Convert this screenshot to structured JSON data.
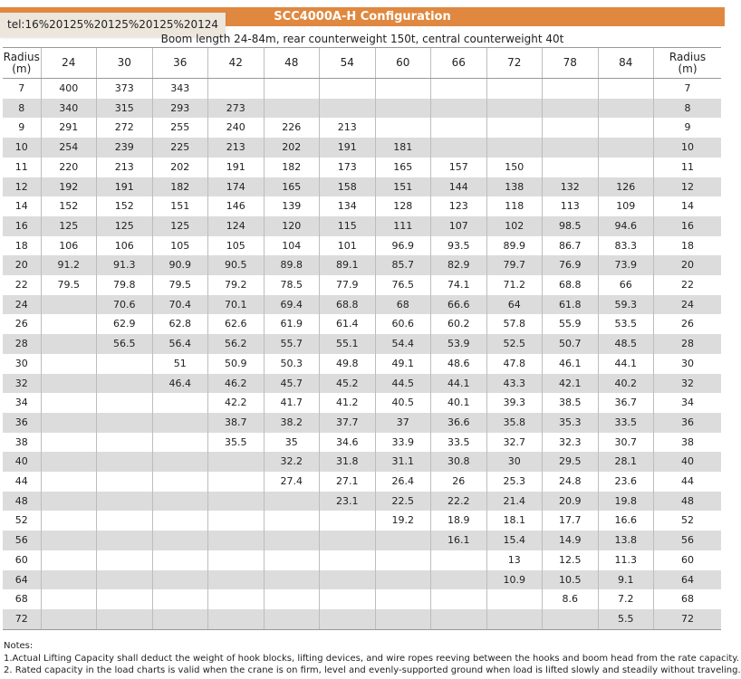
{
  "title": "SCC4000A-H Configuration",
  "overlay_text": "tel:16%20125%20125%20125%20124",
  "subtitle": "Boom length 24-84m, rear counterweight 150t, central counterweight 40t",
  "table": {
    "radius_label_left": "Radius",
    "radius_unit_left": "(m)",
    "radius_label_right": "Radius",
    "radius_unit_right": "(m)",
    "boom_lengths": [
      "24",
      "30",
      "36",
      "42",
      "48",
      "54",
      "60",
      "66",
      "72",
      "78",
      "84"
    ],
    "rows": [
      {
        "r": "7",
        "v": [
          "400",
          "373",
          "343",
          "",
          "",
          "",
          "",
          "",
          "",
          "",
          ""
        ]
      },
      {
        "r": "8",
        "v": [
          "340",
          "315",
          "293",
          "273",
          "",
          "",
          "",
          "",
          "",
          "",
          ""
        ]
      },
      {
        "r": "9",
        "v": [
          "291",
          "272",
          "255",
          "240",
          "226",
          "213",
          "",
          "",
          "",
          "",
          ""
        ]
      },
      {
        "r": "10",
        "v": [
          "254",
          "239",
          "225",
          "213",
          "202",
          "191",
          "181",
          "",
          "",
          "",
          ""
        ]
      },
      {
        "r": "11",
        "v": [
          "220",
          "213",
          "202",
          "191",
          "182",
          "173",
          "165",
          "157",
          "150",
          "",
          ""
        ]
      },
      {
        "r": "12",
        "v": [
          "192",
          "191",
          "182",
          "174",
          "165",
          "158",
          "151",
          "144",
          "138",
          "132",
          "126"
        ]
      },
      {
        "r": "14",
        "v": [
          "152",
          "152",
          "151",
          "146",
          "139",
          "134",
          "128",
          "123",
          "118",
          "113",
          "109"
        ]
      },
      {
        "r": "16",
        "v": [
          "125",
          "125",
          "125",
          "124",
          "120",
          "115",
          "111",
          "107",
          "102",
          "98.5",
          "94.6"
        ]
      },
      {
        "r": "18",
        "v": [
          "106",
          "106",
          "105",
          "105",
          "104",
          "101",
          "96.9",
          "93.5",
          "89.9",
          "86.7",
          "83.3"
        ]
      },
      {
        "r": "20",
        "v": [
          "91.2",
          "91.3",
          "90.9",
          "90.5",
          "89.8",
          "89.1",
          "85.7",
          "82.9",
          "79.7",
          "76.9",
          "73.9"
        ]
      },
      {
        "r": "22",
        "v": [
          "79.5",
          "79.8",
          "79.5",
          "79.2",
          "78.5",
          "77.9",
          "76.5",
          "74.1",
          "71.2",
          "68.8",
          "66"
        ]
      },
      {
        "r": "24",
        "v": [
          "",
          "70.6",
          "70.4",
          "70.1",
          "69.4",
          "68.8",
          "68",
          "66.6",
          "64",
          "61.8",
          "59.3"
        ]
      },
      {
        "r": "26",
        "v": [
          "",
          "62.9",
          "62.8",
          "62.6",
          "61.9",
          "61.4",
          "60.6",
          "60.2",
          "57.8",
          "55.9",
          "53.5"
        ]
      },
      {
        "r": "28",
        "v": [
          "",
          "56.5",
          "56.4",
          "56.2",
          "55.7",
          "55.1",
          "54.4",
          "53.9",
          "52.5",
          "50.7",
          "48.5"
        ]
      },
      {
        "r": "30",
        "v": [
          "",
          "",
          "51",
          "50.9",
          "50.3",
          "49.8",
          "49.1",
          "48.6",
          "47.8",
          "46.1",
          "44.1"
        ]
      },
      {
        "r": "32",
        "v": [
          "",
          "",
          "46.4",
          "46.2",
          "45.7",
          "45.2",
          "44.5",
          "44.1",
          "43.3",
          "42.1",
          "40.2"
        ]
      },
      {
        "r": "34",
        "v": [
          "",
          "",
          "",
          "42.2",
          "41.7",
          "41.2",
          "40.5",
          "40.1",
          "39.3",
          "38.5",
          "36.7"
        ]
      },
      {
        "r": "36",
        "v": [
          "",
          "",
          "",
          "38.7",
          "38.2",
          "37.7",
          "37",
          "36.6",
          "35.8",
          "35.3",
          "33.5"
        ]
      },
      {
        "r": "38",
        "v": [
          "",
          "",
          "",
          "35.5",
          "35",
          "34.6",
          "33.9",
          "33.5",
          "32.7",
          "32.3",
          "30.7"
        ]
      },
      {
        "r": "40",
        "v": [
          "",
          "",
          "",
          "",
          "32.2",
          "31.8",
          "31.1",
          "30.8",
          "30",
          "29.5",
          "28.1"
        ]
      },
      {
        "r": "44",
        "v": [
          "",
          "",
          "",
          "",
          "27.4",
          "27.1",
          "26.4",
          "26",
          "25.3",
          "24.8",
          "23.6"
        ]
      },
      {
        "r": "48",
        "v": [
          "",
          "",
          "",
          "",
          "",
          "23.1",
          "22.5",
          "22.2",
          "21.4",
          "20.9",
          "19.8"
        ]
      },
      {
        "r": "52",
        "v": [
          "",
          "",
          "",
          "",
          "",
          "",
          "19.2",
          "18.9",
          "18.1",
          "17.7",
          "16.6"
        ]
      },
      {
        "r": "56",
        "v": [
          "",
          "",
          "",
          "",
          "",
          "",
          "",
          "16.1",
          "15.4",
          "14.9",
          "13.8"
        ]
      },
      {
        "r": "60",
        "v": [
          "",
          "",
          "",
          "",
          "",
          "",
          "",
          "",
          "13",
          "12.5",
          "11.3"
        ]
      },
      {
        "r": "64",
        "v": [
          "",
          "",
          "",
          "",
          "",
          "",
          "",
          "",
          "10.9",
          "10.5",
          "9.1"
        ]
      },
      {
        "r": "68",
        "v": [
          "",
          "",
          "",
          "",
          "",
          "",
          "",
          "",
          "",
          "8.6",
          "7.2"
        ]
      },
      {
        "r": "72",
        "v": [
          "",
          "",
          "",
          "",
          "",
          "",
          "",
          "",
          "",
          "",
          "5.5"
        ]
      }
    ]
  },
  "notes": {
    "heading": "Notes:",
    "items": [
      "1.Actual Lifting Capacity shall deduct the weight of hook blocks, lifting devices, and wire ropes reeving between the hooks and boom head from the rate capacity.",
      "2. Rated capacity in the load charts is valid when the crane is on firm, level and evenly-supported ground when load is lifted slowly and steadily without traveling."
    ]
  }
}
